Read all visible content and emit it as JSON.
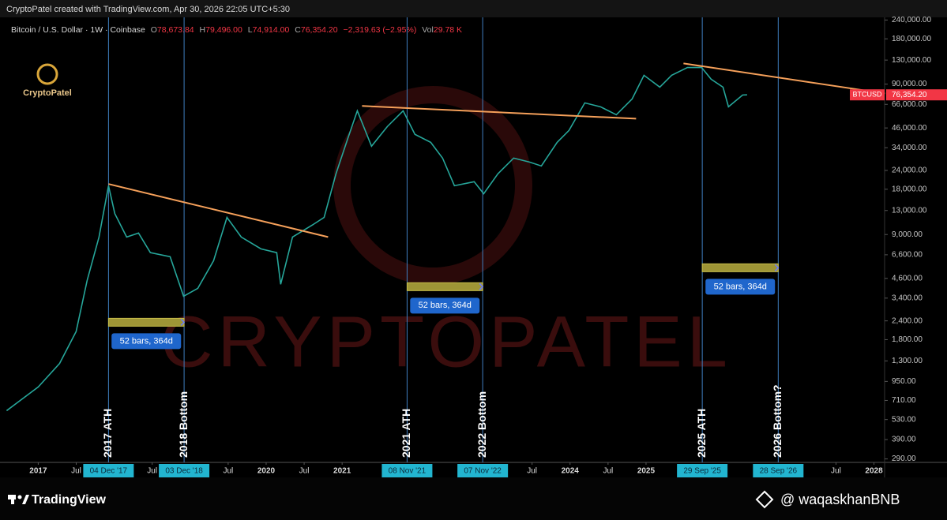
{
  "header": "CryptoPatel created with TradingView.com, Apr 30, 2026 22:05 UTC+5:30",
  "logo": "CryptoPatel",
  "watermark": "CRYPTOPATEL",
  "footer": {
    "brand": "TradingView",
    "handle": "@ waqaskhanBNB"
  },
  "chart_data": {
    "type": "line",
    "title": "Bitcoin / U.S. Dollar · 1W · Coinbase",
    "ohlc": [
      {
        "key": "O",
        "value": "78,673.84"
      },
      {
        "key": "H",
        "value": "79,496.00"
      },
      {
        "key": "L",
        "value": "74,914.00"
      },
      {
        "key": "C",
        "value": "76,354.20"
      }
    ],
    "change": "−2,319.63 (−2.95%)",
    "volume": {
      "key": "Vol",
      "value": "29.78 K"
    },
    "log_scale": true,
    "grid": false,
    "xlim": [
      2016.58,
      2028.14
    ],
    "ylim": [
      275,
      250000
    ],
    "yticks": [
      {
        "value": 240000,
        "label": "240,000.00"
      },
      {
        "value": 180000,
        "label": "180,000.00"
      },
      {
        "value": 130000,
        "label": "130,000.00"
      },
      {
        "value": 90000,
        "label": "90,000.00"
      },
      {
        "value": 66000,
        "label": "66,000.00"
      },
      {
        "value": 46000,
        "label": "46,000.00"
      },
      {
        "value": 34000,
        "label": "34,000.00"
      },
      {
        "value": 24000,
        "label": "24,000.00"
      },
      {
        "value": 18000,
        "label": "18,000.00"
      },
      {
        "value": 13000,
        "label": "13,000.00"
      },
      {
        "value": 9000,
        "label": "9,000.00"
      },
      {
        "value": 6600,
        "label": "6,600.00"
      },
      {
        "value": 4600,
        "label": "4,600.00"
      },
      {
        "value": 3400,
        "label": "3,400.00"
      },
      {
        "value": 2400,
        "label": "2,400.00"
      },
      {
        "value": 1800,
        "label": "1,800.00"
      },
      {
        "value": 1300,
        "label": "1,300.00"
      },
      {
        "value": 950,
        "label": "950.00"
      },
      {
        "value": 710,
        "label": "710.00"
      },
      {
        "value": 530,
        "label": "530.00"
      },
      {
        "value": 390,
        "label": "390.00"
      },
      {
        "value": 290,
        "label": "290.00"
      }
    ],
    "xticks": [
      2017,
      {
        "value": 2017.5,
        "label": "Jul"
      },
      {
        "value": 2018.5,
        "label": "Jul"
      },
      {
        "value": 2019.5,
        "label": "Jul"
      },
      2020,
      {
        "value": 2020.5,
        "label": "Jul"
      },
      2021,
      {
        "value": 2023.5,
        "label": "Jul"
      },
      2024,
      {
        "value": 2024.5,
        "label": "Jul"
      },
      2025,
      {
        "value": 2027.5,
        "label": "Jul"
      },
      2028
    ],
    "x": [
      2016.584,
      2017.0,
      2017.281,
      2017.499,
      2017.644,
      2017.8,
      2017.925,
      2018.008,
      2018.164,
      2018.32,
      2018.476,
      2018.736,
      2018.913,
      2019.1,
      2019.308,
      2019.484,
      2019.672,
      2019.931,
      2020.139,
      2020.191,
      2020.347,
      2020.607,
      2020.763,
      2020.919,
      2021.075,
      2021.2,
      2021.387,
      2021.595,
      2021.803,
      2021.958,
      2022.166,
      2022.322,
      2022.478,
      2022.738,
      2022.863,
      2023.05,
      2023.258,
      2023.466,
      2023.622,
      2023.83,
      2023.986,
      2024.194,
      2024.401,
      2024.609,
      2024.817,
      2024.973,
      2025.181,
      2025.337,
      2025.545,
      2025.732,
      2025.857,
      2026.013,
      2026.085,
      2026.272,
      2026.33
    ],
    "series": [
      {
        "name": "BTCUSD",
        "color": "#26a69a",
        "values": [
          607,
          873,
          1250,
          2040,
          4460,
          8660,
          19000,
          12400,
          8660,
          9200,
          6820,
          6410,
          3500,
          3950,
          6030,
          11700,
          8660,
          7230,
          6820,
          4200,
          8660,
          10400,
          11700,
          22800,
          39200,
          59800,
          34800,
          47000,
          59800,
          41700,
          36900,
          29000,
          19000,
          20200,
          16800,
          22800,
          29000,
          27300,
          25700,
          36900,
          44300,
          67500,
          63600,
          56300,
          71700,
          103000,
          85900,
          103000,
          116000,
          116000,
          97000,
          85900,
          63600,
          76200,
          76354.2
        ]
      }
    ],
    "last_price_label": "76,354.20",
    "price_tag_color": "#f23645",
    "trendline_color": "#f5a05a",
    "trendlines": [
      {
        "x": [
          2017.925,
          2020.815
        ],
        "y": [
          19500,
          8660
        ]
      },
      {
        "x": [
          2021.262,
          2024.869
        ],
        "y": [
          64400,
          53000
        ]
      },
      {
        "x": [
          2025.493,
          2028.144
        ],
        "y": [
          123500,
          78000
        ]
      }
    ],
    "event_color": "#3f7fc0",
    "events": [
      {
        "label": "2017 ATH",
        "x": 2017.925,
        "date_label": "04 Dec '17"
      },
      {
        "label": "2018 Bottom",
        "x": 2018.92,
        "date_label": "03 Dec '18"
      },
      {
        "label": "2021 ATH",
        "x": 2021.855,
        "date_label": "08 Nov '21"
      },
      {
        "label": "2022 Bottom",
        "x": 2022.85,
        "date_label": "07 Nov '22"
      },
      {
        "label": "2025 ATH",
        "x": 2025.74,
        "date_label": "29 Sep '25"
      },
      {
        "label": "2026 Bottom?",
        "x": 2026.74,
        "date_label": "28 Sep '26"
      }
    ],
    "ranges": [
      {
        "label": "52 bars, 364d",
        "x": [
          2017.925,
          2018.92
        ],
        "y": 2350
      },
      {
        "label": "52 bars, 364d",
        "x": [
          2021.855,
          2022.85
        ],
        "y": 4050
      },
      {
        "label": "52 bars, 364d",
        "x": [
          2025.74,
          2026.74
        ],
        "y": 5410
      }
    ]
  }
}
